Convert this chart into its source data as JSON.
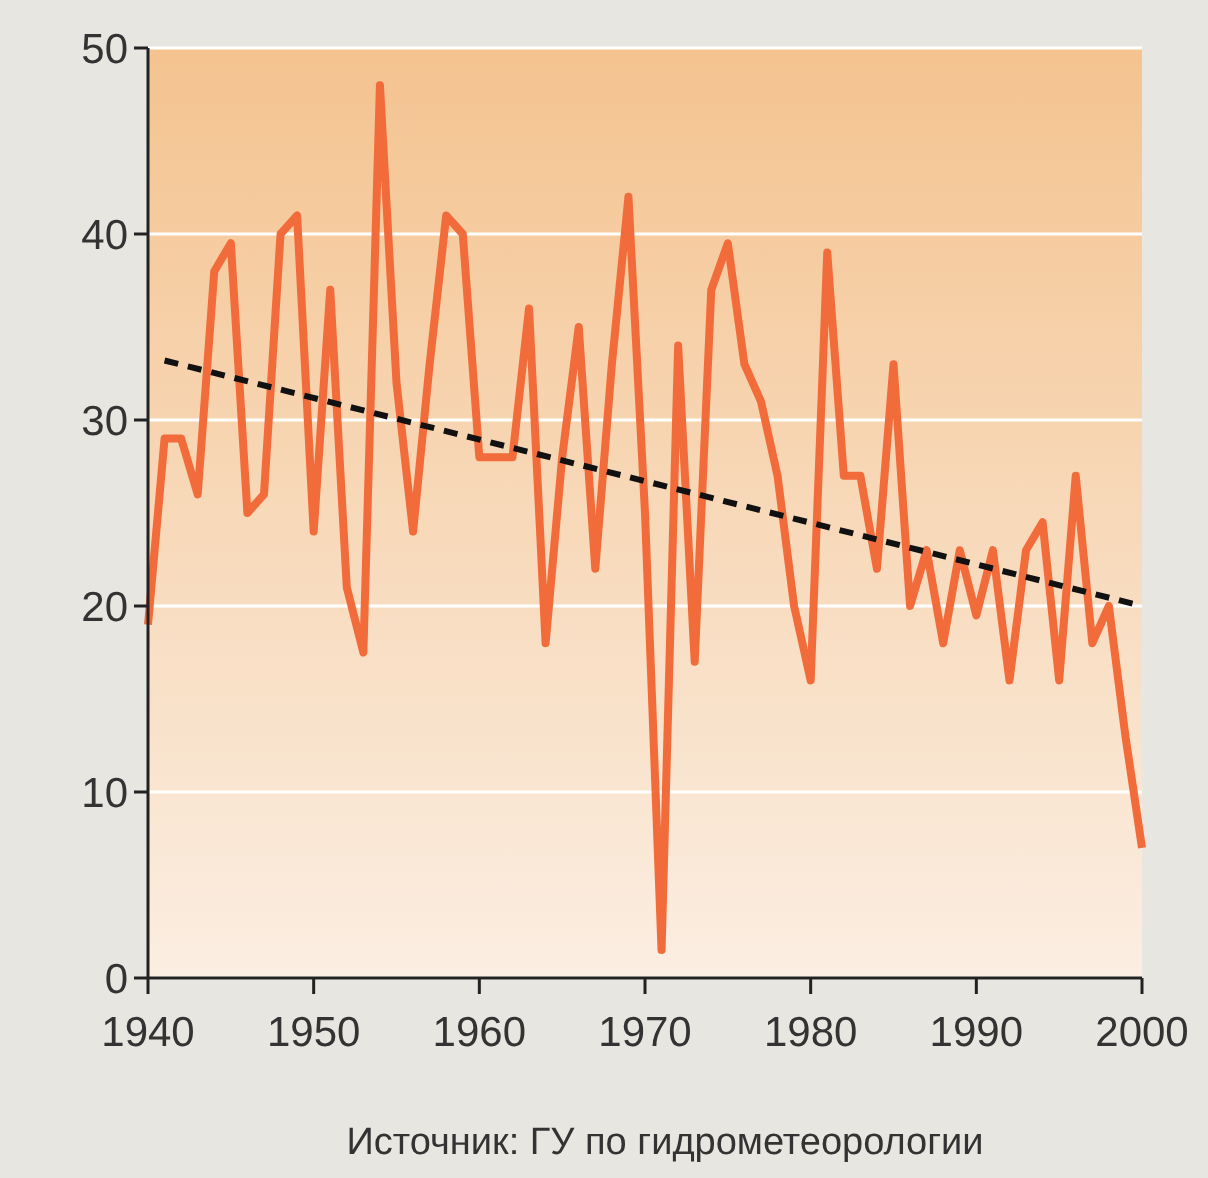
{
  "chart_data": {
    "type": "line",
    "x": [
      1940,
      1941,
      1942,
      1943,
      1944,
      1945,
      1946,
      1947,
      1948,
      1949,
      1950,
      1951,
      1952,
      1953,
      1954,
      1955,
      1956,
      1957,
      1958,
      1959,
      1960,
      1961,
      1962,
      1963,
      1964,
      1965,
      1966,
      1967,
      1968,
      1969,
      1970,
      1971,
      1972,
      1973,
      1974,
      1975,
      1976,
      1977,
      1978,
      1979,
      1980,
      1981,
      1982,
      1983,
      1984,
      1985,
      1986,
      1987,
      1988,
      1989,
      1990,
      1991,
      1992,
      1993,
      1994,
      1995,
      1996,
      1997,
      1998,
      1999,
      2000
    ],
    "series": [
      {
        "type": "line",
        "color": "#f26b3a",
        "line_style": "solid",
        "values": [
          19,
          29,
          29,
          26,
          38,
          39.5,
          25,
          26,
          40,
          41,
          24,
          37,
          21,
          17.5,
          48,
          32,
          24,
          33,
          41,
          40,
          28,
          28,
          28,
          36,
          18,
          28,
          35,
          22,
          33,
          42,
          25,
          1.5,
          34,
          17,
          37,
          39.5,
          33,
          31,
          27,
          20,
          16,
          39,
          27,
          27,
          22,
          33,
          20,
          23,
          18,
          23,
          19.5,
          23,
          16,
          23,
          24.5,
          16,
          27,
          18,
          20,
          13,
          7
        ]
      },
      {
        "type": "line",
        "color": "#111111",
        "line_style": "dashed",
        "x": [
          1941,
          2000
        ],
        "values": [
          33.2,
          20
        ]
      }
    ],
    "xlim": [
      1940,
      2000
    ],
    "xticks": [
      1940,
      1950,
      1960,
      1970,
      1980,
      1990,
      2000
    ],
    "ylim": [
      0,
      50
    ],
    "yticks": [
      0,
      10,
      20,
      30,
      40,
      50
    ],
    "grid": "y",
    "annotations": [
      "Источник: ГУ по гидрометеорологии"
    ]
  }
}
